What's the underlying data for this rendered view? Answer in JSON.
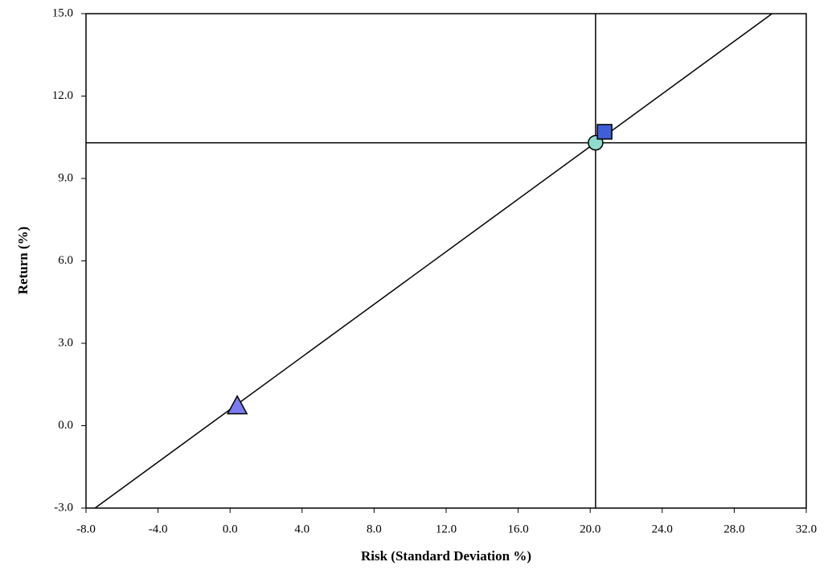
{
  "chart_data": {
    "type": "scatter",
    "xlabel": "Risk (Standard Deviation %)",
    "ylabel": "Return (%)",
    "xlim": [
      -8,
      32
    ],
    "ylim": [
      -3,
      15
    ],
    "xticks": [
      {
        "value": -8,
        "label": "-8.0"
      },
      {
        "value": -4,
        "label": "-4.0"
      },
      {
        "value": 0,
        "label": "0.0"
      },
      {
        "value": 4,
        "label": "4.0"
      },
      {
        "value": 8,
        "label": "8.0"
      },
      {
        "value": 12,
        "label": "12.0"
      },
      {
        "value": 16,
        "label": "16.0"
      },
      {
        "value": 20,
        "label": "20.0"
      },
      {
        "value": 24,
        "label": "24.0"
      },
      {
        "value": 28,
        "label": "28.0"
      },
      {
        "value": 32,
        "label": "32.0"
      }
    ],
    "yticks": [
      {
        "value": -3,
        "label": "-3.0"
      },
      {
        "value": 0,
        "label": "0.0"
      },
      {
        "value": 3,
        "label": "3.0"
      },
      {
        "value": 6,
        "label": "6.0"
      },
      {
        "value": 9,
        "label": "9.0"
      },
      {
        "value": 12,
        "label": "12.0"
      },
      {
        "value": 15,
        "label": "15.0"
      }
    ],
    "crosshair": {
      "x": 20.3,
      "y": 10.3,
      "color": "#000000"
    },
    "series": [
      {
        "kind": "line",
        "color": "#000000",
        "x": [
          -7.5,
          30.1
        ],
        "values": [
          -3,
          15
        ]
      },
      {
        "kind": "point",
        "marker": "triangle",
        "color": "#7b7bef",
        "x": [
          0.4
        ],
        "values": [
          0.7
        ]
      },
      {
        "kind": "point",
        "marker": "circle",
        "color": "#8fdccc",
        "x": [
          20.3
        ],
        "values": [
          10.3
        ]
      },
      {
        "kind": "point",
        "marker": "square",
        "color": "#3f5fd8",
        "x": [
          20.8
        ],
        "values": [
          10.7
        ]
      }
    ]
  }
}
